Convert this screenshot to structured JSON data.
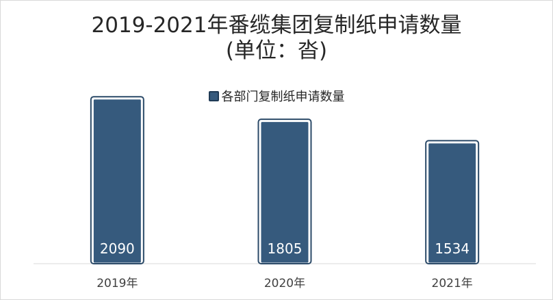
{
  "chart_data": {
    "type": "bar",
    "title": "2019-2021年番缆集团复制纸申请数量",
    "subtitle": "(单位：沓)",
    "categories": [
      "2019年",
      "2020年",
      "2021年"
    ],
    "series": [
      {
        "name": "各部门复制纸申请数量",
        "values": [
          2090,
          1805,
          1534
        ]
      }
    ],
    "data_labels": [
      "2090",
      "1805",
      "1534"
    ],
    "ylim": [
      0,
      2200
    ],
    "grid": false,
    "legend_position": "top",
    "colors": {
      "bar": "#365a7d",
      "bar_edge": "#2b4a68"
    }
  }
}
